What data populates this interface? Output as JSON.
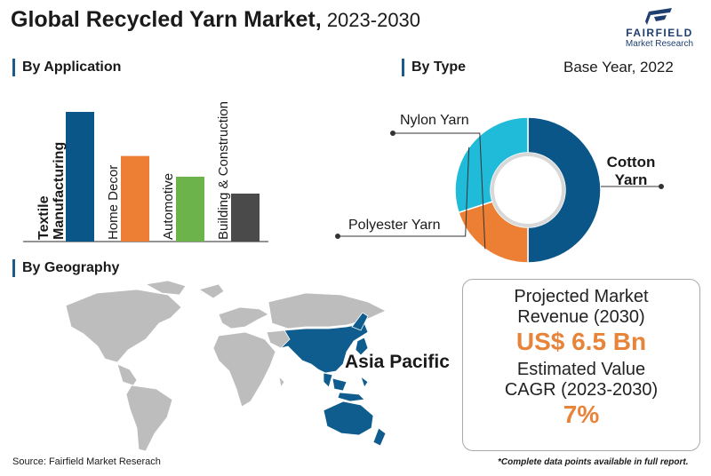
{
  "header": {
    "title_bold": "Global Recycled Yarn Market,",
    "title_years": " 2023-2030"
  },
  "logo": {
    "brand": "FAIRFIELD",
    "sub": "Market Research"
  },
  "sections": {
    "application": "By Application",
    "type": "By Type",
    "geography": "By Geography"
  },
  "base_year": "Base Year, 2022",
  "region_label": "Asia Pacific",
  "stats": {
    "revenue_label_1": "Projected Market",
    "revenue_label_2": "Revenue (2030)",
    "revenue_value": "US$ 6.5 Bn",
    "cagr_label_1": "Estimated Value",
    "cagr_label_2": "CAGR (2023-2030)",
    "cagr_value": "7%"
  },
  "source": "Source: Fairfield Market Reserach",
  "footnote": "*Complete data points available in full report.",
  "colors": {
    "dark_blue": "#0b5689",
    "orange": "#ec7f33",
    "green": "#6bb34a",
    "gray": "#4a4a4a",
    "cyan": "#1fbbd8",
    "map_gray": "#bdbdbd",
    "map_highlight": "#0f5d8e"
  },
  "chart_data": [
    {
      "type": "bar",
      "categories": [
        "Textile Manufacturing",
        "Home Decor",
        "Automotive",
        "Building & Construction"
      ],
      "values": [
        100,
        66,
        50,
        37
      ],
      "colors": [
        "#0b5689",
        "#ec7f33",
        "#6bb34a",
        "#4a4a4a"
      ],
      "bold_categories": [
        true,
        false,
        false,
        false
      ],
      "category_lines": [
        [
          "Textile",
          "Manufacturing"
        ],
        [
          "Home Decor"
        ],
        [
          "Automotive"
        ],
        [
          "Building & Construction"
        ]
      ],
      "ylim": [
        0,
        100
      ],
      "grid": false
    },
    {
      "type": "pie",
      "donut": true,
      "labels": [
        "Cotton Yarn",
        "Nylon Yarn",
        "Polyester Yarn"
      ],
      "label_lines": [
        [
          "Cotton",
          "Yarn"
        ],
        [
          "Nylon Yarn"
        ],
        [
          "Polyester Yarn"
        ]
      ],
      "bold_labels": [
        true,
        false,
        false
      ],
      "values": [
        50,
        20,
        30
      ],
      "colors": [
        "#0b5689",
        "#ec7f33",
        "#1fbbd8"
      ]
    }
  ]
}
